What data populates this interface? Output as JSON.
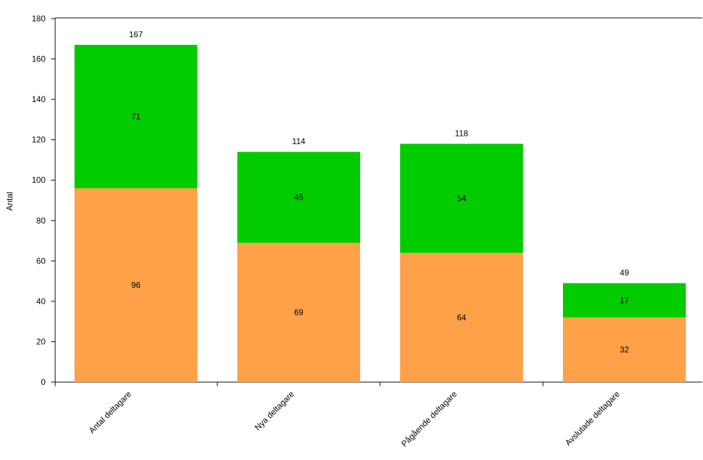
{
  "chart_data": {
    "type": "bar",
    "stacked": true,
    "categories": [
      "Antal deltagare",
      "Nya deltagare",
      "Pågående deltagare",
      "Avslutade deltagare"
    ],
    "series": [
      {
        "values": [
          96,
          69,
          64,
          32
        ],
        "color": "#FFA148"
      },
      {
        "values": [
          71,
          45,
          54,
          17
        ],
        "color": "#00CC00"
      }
    ],
    "totals": [
      167,
      114,
      118,
      49
    ],
    "ylabel": "Antal",
    "xlabel": "",
    "ylim": [
      0,
      180
    ],
    "yticks": [
      0,
      20,
      40,
      60,
      80,
      100,
      120,
      140,
      160,
      180
    ],
    "grid": false,
    "legend": "none"
  }
}
